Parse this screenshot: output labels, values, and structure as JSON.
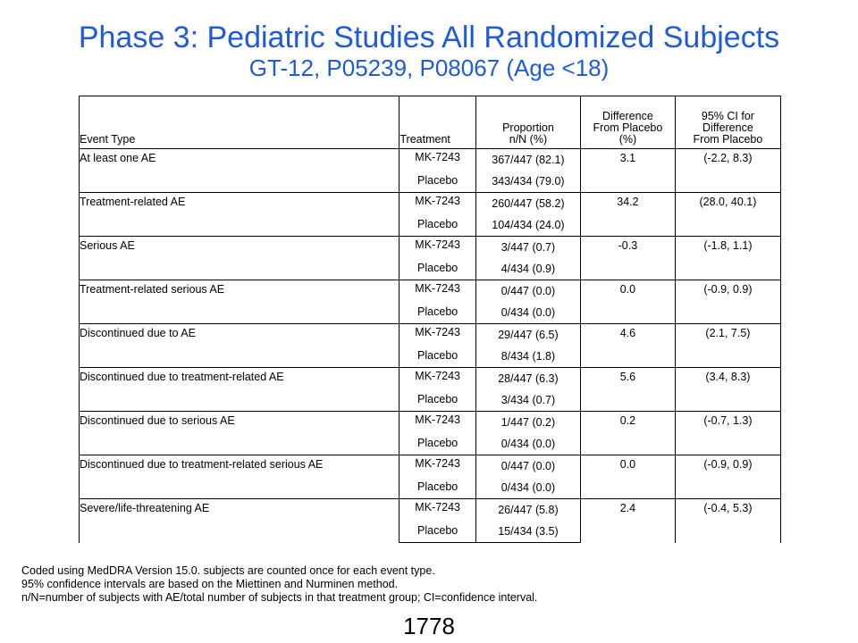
{
  "slide": {
    "title": "Phase 3: Pediatric Studies All Randomized Subjects",
    "subtitle": "GT-12, P05239, P08067 (Age <18)",
    "page_number": "1778",
    "title_color": "#1f5bd6"
  },
  "table": {
    "headers": {
      "event_type": "Event Type",
      "treatment": "Treatment",
      "proportion_line1": "Proportion",
      "proportion_line2": "n/N (%)",
      "difference_line1": "Difference",
      "difference_line2": "From Placebo",
      "difference_line3": "(%)",
      "ci_line1": "95% CI for",
      "ci_line2": "Difference",
      "ci_line3": "From Placebo"
    },
    "rows": [
      {
        "event": "At least one AE",
        "treat_a": "MK-7243",
        "prop_a": "367/447 (82.1)",
        "treat_b": "Placebo",
        "prop_b": "343/434 (79.0)",
        "difference": "3.1",
        "ci": "(-2.2, 8.3)"
      },
      {
        "event": "Treatment-related AE",
        "treat_a": "MK-7243",
        "prop_a": "260/447 (58.2)",
        "treat_b": "Placebo",
        "prop_b": "104/434 (24.0)",
        "difference": "34.2",
        "ci": "(28.0, 40.1)"
      },
      {
        "event": "Serious AE",
        "treat_a": "MK-7243",
        "prop_a": "3/447 (0.7)",
        "treat_b": "Placebo",
        "prop_b": "4/434 (0.9)",
        "difference": "-0.3",
        "ci": "(-1.8, 1.1)"
      },
      {
        "event": "Treatment-related serious AE",
        "treat_a": "MK-7243",
        "prop_a": "0/447 (0.0)",
        "treat_b": "Placebo",
        "prop_b": "0/434 (0.0)",
        "difference": "0.0",
        "ci": "(-0.9, 0.9)"
      },
      {
        "event": "Discontinued due to AE",
        "treat_a": "MK-7243",
        "prop_a": "29/447 (6.5)",
        "treat_b": "Placebo",
        "prop_b": "8/434 (1.8)",
        "difference": "4.6",
        "ci": "(2.1, 7.5)"
      },
      {
        "event": "Discontinued due to treatment-related AE",
        "treat_a": "MK-7243",
        "prop_a": "28/447 (6.3)",
        "treat_b": "Placebo",
        "prop_b": "3/434 (0.7)",
        "difference": "5.6",
        "ci": "(3.4, 8.3)"
      },
      {
        "event": "Discontinued due to serious AE",
        "treat_a": "MK-7243",
        "prop_a": "1/447 (0.2)",
        "treat_b": "Placebo",
        "prop_b": "0/434 (0.0)",
        "difference": "0.2",
        "ci": "(-0.7, 1.3)"
      },
      {
        "event": "Discontinued due to treatment-related serious AE",
        "treat_a": "MK-7243",
        "prop_a": "0/447 (0.0)",
        "treat_b": "Placebo",
        "prop_b": "0/434 (0.0)",
        "difference": "0.0",
        "ci": "(-0.9, 0.9)"
      },
      {
        "event": "Severe/life-threatening AE",
        "treat_a": "MK-7243",
        "prop_a": "26/447 (5.8)",
        "treat_b": "Placebo",
        "prop_b": "15/434 (3.5)",
        "difference": "2.4",
        "ci": "(-0.4, 5.3)"
      }
    ]
  },
  "footnotes": {
    "line1": "Coded using MedDRA Version 15.0. subjects are counted once for each event type.",
    "line2": "95% confidence intervals are based on the Miettinen and Nurminen method.",
    "line3": "n/N=number  of subjects with AE/total number of subjects in that treatment group; CI=confidence interval."
  }
}
